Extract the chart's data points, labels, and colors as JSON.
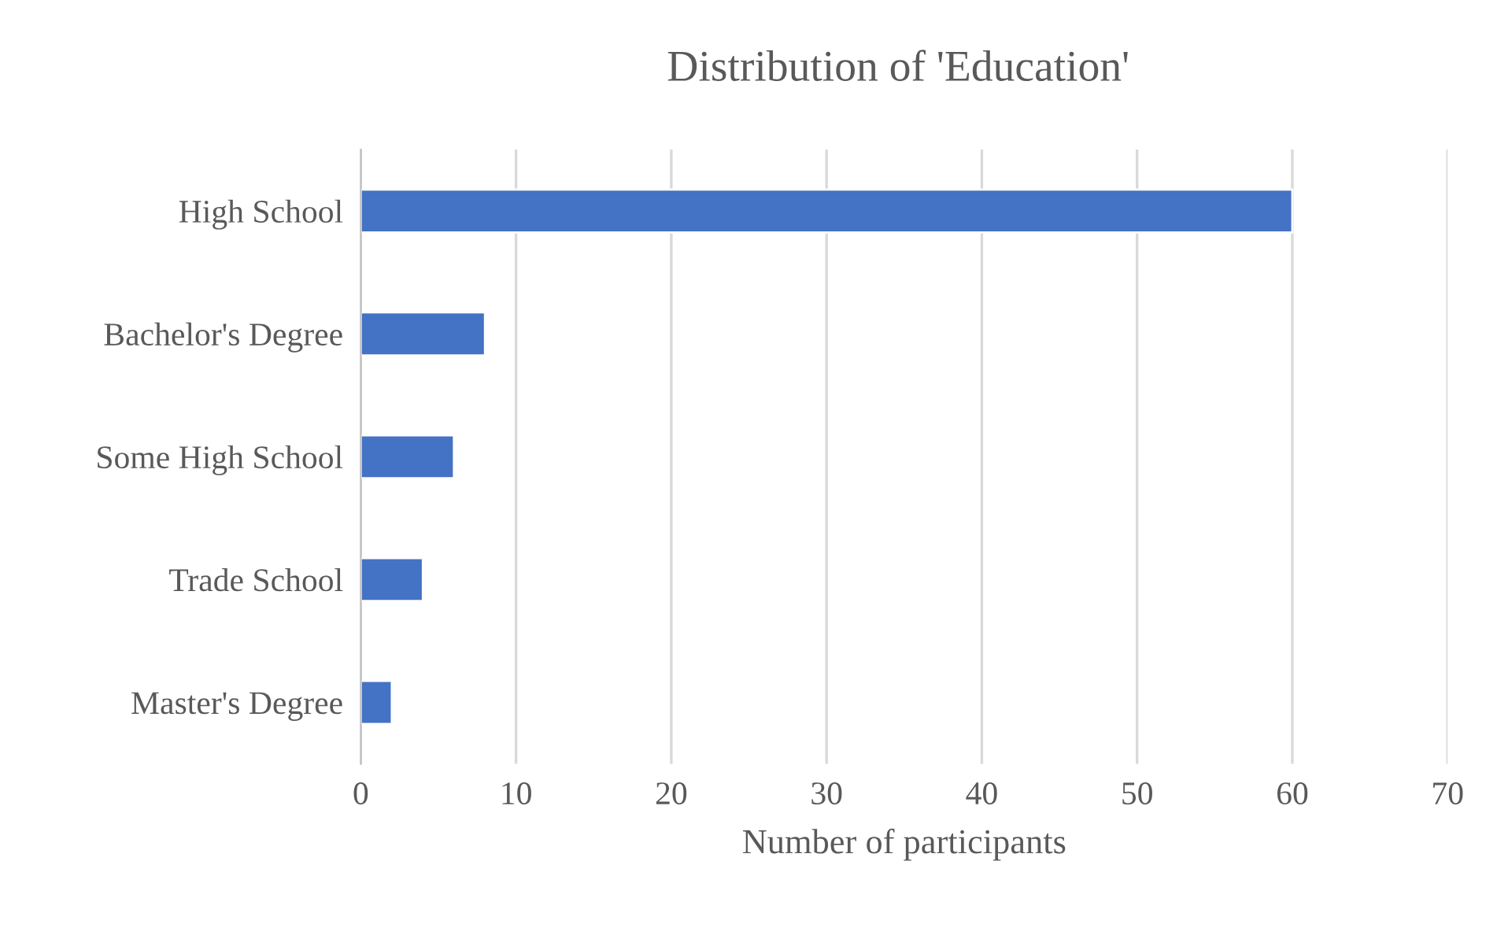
{
  "chart_data": {
    "type": "bar",
    "orientation": "horizontal",
    "title": "Distribution of 'Education'",
    "xlabel": "Number of participants",
    "categories": [
      "High School",
      "Bachelor's Degree",
      "Some High School",
      "Trade School",
      "Master's Degree"
    ],
    "values": [
      60,
      8,
      6,
      4,
      2
    ],
    "color": "#4472c4",
    "xlim": [
      0,
      70
    ],
    "xticks": [
      0,
      10,
      20,
      30,
      40,
      50,
      60,
      70
    ],
    "grid": "x",
    "legend": false
  }
}
